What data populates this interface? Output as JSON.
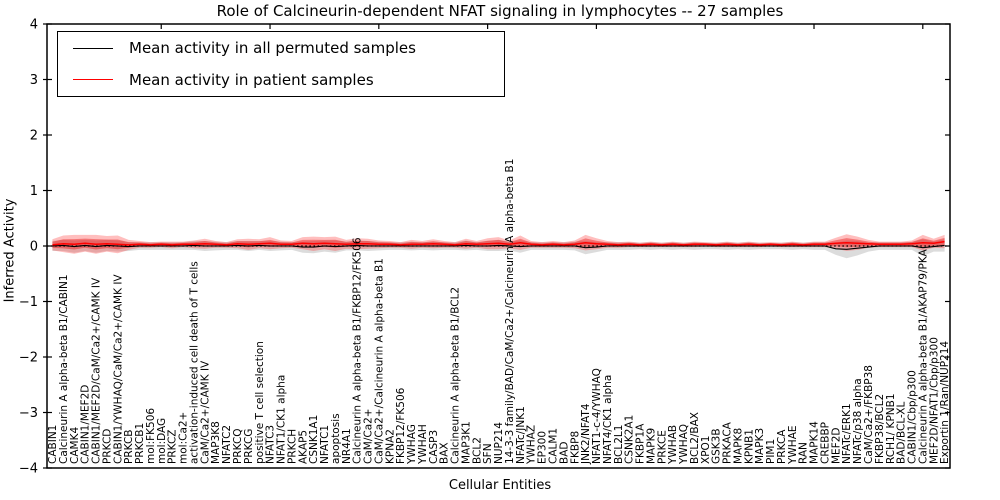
{
  "figure": {
    "title": "Role of Calcineurin-dependent NFAT signaling in lymphocytes -- 27 samples"
  },
  "chart_data": {
    "type": "line",
    "title": "Role of Calcineurin-dependent NFAT signaling in lymphocytes -- 27 samples",
    "xlabel": "Cellular Entities",
    "ylabel": "Inferred Activity",
    "ylim": [
      -4,
      4
    ],
    "yticks": [
      -4,
      -3,
      -2,
      -1,
      0,
      1,
      2,
      3,
      4
    ],
    "ytick_labels": [
      "−4",
      "−3",
      "−2",
      "−1",
      "0",
      "1",
      "2",
      "3",
      "4"
    ],
    "grid": false,
    "zero_line": {
      "show": true,
      "style": "dotted",
      "color": "#000000"
    },
    "legend_position": "upper left",
    "legend": [
      {
        "label": "Mean activity in all permuted samples",
        "color": "#000000"
      },
      {
        "label": "Mean activity in patient samples",
        "color": "#ff0000"
      }
    ],
    "colors": {
      "patient_line": "#ff0000",
      "patient_band": "rgba(255,40,40,0.30)",
      "patient_band_inner": "rgba(230,0,0,0.38)",
      "permuted_line": "#000000",
      "permuted_band": "rgba(130,130,130,0.28)"
    },
    "categories": [
      "CABIN1",
      "Calcineurin A alpha-beta B1/CABIN1",
      "CAMK4",
      "CABIN1/MEF2D",
      "CABIN1/MEF2D/CaM/Ca2+/CAMK IV",
      "PRKCD",
      "CABIN1/YWHAQ/CaM/Ca2+/CAMK IV",
      "PRKCB",
      "PRKCB1",
      "mol:FK506",
      "mol:DAG",
      "PRKCZ",
      "mol:Ca2+",
      "activation-induced cell death of T cells",
      "CaM/Ca2+/CAMK IV",
      "MAP3K8",
      "NFATC2",
      "PRKCQ",
      "PRKCG",
      "positive T cell selection",
      "NFATC3",
      "NFAT1/CK1 alpha",
      "PRKCH",
      "AKAP5",
      "CSNK1A1",
      "NFATC1",
      "apoptosis",
      "NR4A1",
      "Calcineurin A alpha-beta B1/FKBP12/FK506",
      "CaM/Ca2+",
      "CaM/Ca2+/Calcineurin A alpha-beta B1",
      "KPNA2",
      "FKBP12/FK506",
      "YWHAG",
      "YWHAH",
      "CASP3",
      "BAX",
      "Calcineurin A alpha-beta B1/BCL2",
      "MAP3K1",
      "BCL2",
      "SFN",
      "NUP214",
      "14-3-3 family/BAD/CaM/Ca2+/Calcineurin A alpha-beta B1",
      "NFATc/JNK1",
      "YWHAZ",
      "EP300",
      "CALM1",
      "BAD",
      "FKBP8",
      "JNK2/NFAT4",
      "NFAT1-c-4/YWHAQ",
      "NFAT4/CK1 alpha",
      "BCL2L1",
      "CSNK2A1",
      "FKBP1A",
      "MAPK9",
      "PRKCE",
      "YWHAB",
      "YWHAQ",
      "BCL2/BAX",
      "XPO1",
      "GSK3B",
      "PRKACA",
      "MAPK8",
      "KPNB1",
      "MAPK3",
      "PIM1",
      "PRKCA",
      "YWHAE",
      "RAN",
      "MAPK14",
      "CREBBP",
      "MEF2D",
      "NFATc/ERK1",
      "NFATc/p38 alpha",
      "CaM/Ca2+/FKBP38",
      "FKBP38/BCL2",
      "RCH1/ KPNB1",
      "BAD/BCL-XL",
      "CABIN1/Cbp/p300",
      "Calcineurin A alpha-beta B1/AKAP79/PKA",
      "MEF2D/NFAT1/Cbp/p300",
      "Exportin 1/Ran/NUP214"
    ],
    "series": [
      {
        "name": "Mean activity in all permuted samples",
        "color": "#000000",
        "values": [
          0,
          0.01,
          -0.01,
          0.01,
          -0.01,
          0.01,
          0,
          -0.01,
          0,
          0,
          0,
          0,
          0,
          0.01,
          0,
          0,
          0,
          0.01,
          0,
          0.01,
          0,
          0,
          0,
          -0.02,
          -0.02,
          0,
          -0.01,
          0,
          0.01,
          0,
          0,
          0,
          0,
          0,
          0,
          0,
          0,
          0,
          0.01,
          0,
          0,
          0.01,
          0,
          -0.01,
          0,
          0,
          0,
          0,
          0,
          -0.03,
          -0.02,
          0,
          0,
          0,
          0,
          0,
          0,
          0,
          0,
          0,
          0,
          0,
          0,
          0,
          0,
          0,
          0,
          0,
          0,
          0,
          0,
          0,
          -0.05,
          -0.06,
          -0.04,
          -0.02,
          0,
          0,
          0,
          0,
          -0.03,
          -0.01,
          0.01
        ],
        "band_half_width": [
          0.09,
          0.1,
          0.11,
          0.1,
          0.11,
          0.1,
          0.1,
          0.08,
          0.07,
          0.07,
          0.07,
          0.07,
          0.07,
          0.08,
          0.09,
          0.08,
          0.07,
          0.08,
          0.09,
          0.08,
          0.09,
          0.08,
          0.07,
          0.1,
          0.11,
          0.1,
          0.11,
          0.08,
          0.09,
          0.09,
          0.08,
          0.07,
          0.07,
          0.08,
          0.07,
          0.08,
          0.07,
          0.07,
          0.09,
          0.07,
          0.09,
          0.1,
          0.08,
          0.11,
          0.07,
          0.07,
          0.07,
          0.07,
          0.08,
          0.12,
          0.09,
          0.07,
          0.07,
          0.07,
          0.06,
          0.07,
          0.06,
          0.07,
          0.06,
          0.07,
          0.06,
          0.06,
          0.07,
          0.06,
          0.07,
          0.06,
          0.06,
          0.06,
          0.07,
          0.06,
          0.07,
          0.07,
          0.11,
          0.16,
          0.13,
          0.08,
          0.07,
          0.07,
          0.07,
          0.07,
          0.15,
          0.09,
          0.11
        ]
      },
      {
        "name": "Mean activity in patient samples",
        "color": "#ff0000",
        "values": [
          0.02,
          0.04,
          0.03,
          0.05,
          0.03,
          0.04,
          0.03,
          0.02,
          0.03,
          0.02,
          0.03,
          0.02,
          0.03,
          0.03,
          0.04,
          0.03,
          0.02,
          0.04,
          0.03,
          0.04,
          0.05,
          0.03,
          0.03,
          0.05,
          0.04,
          0.05,
          0.04,
          0.03,
          0.04,
          0.04,
          0.03,
          0.03,
          0.02,
          0.03,
          0.03,
          0.04,
          0.03,
          0.02,
          0.04,
          0.03,
          0.04,
          0.05,
          0.03,
          0.06,
          0.03,
          0.02,
          0.03,
          0.02,
          0.03,
          0.06,
          0.04,
          0.03,
          0.02,
          0.03,
          0.02,
          0.03,
          0.02,
          0.03,
          0.02,
          0.03,
          0.03,
          0.02,
          0.03,
          0.02,
          0.03,
          0.02,
          0.03,
          0.02,
          0.03,
          0.02,
          0.03,
          0.03,
          0.05,
          0.06,
          0.05,
          0.04,
          0.03,
          0.03,
          0.03,
          0.04,
          0.06,
          0.05,
          0.08
        ],
        "band_half_width": [
          0.1,
          0.15,
          0.17,
          0.15,
          0.17,
          0.14,
          0.16,
          0.09,
          0.06,
          0.05,
          0.05,
          0.06,
          0.05,
          0.07,
          0.09,
          0.06,
          0.05,
          0.08,
          0.1,
          0.08,
          0.11,
          0.07,
          0.06,
          0.11,
          0.13,
          0.11,
          0.13,
          0.08,
          0.1,
          0.09,
          0.07,
          0.06,
          0.05,
          0.08,
          0.06,
          0.08,
          0.06,
          0.05,
          0.09,
          0.06,
          0.1,
          0.11,
          0.07,
          0.13,
          0.06,
          0.05,
          0.06,
          0.05,
          0.07,
          0.14,
          0.1,
          0.06,
          0.05,
          0.05,
          0.04,
          0.05,
          0.04,
          0.05,
          0.04,
          0.05,
          0.04,
          0.04,
          0.05,
          0.04,
          0.05,
          0.04,
          0.04,
          0.04,
          0.05,
          0.04,
          0.05,
          0.05,
          0.1,
          0.15,
          0.12,
          0.07,
          0.05,
          0.05,
          0.05,
          0.06,
          0.14,
          0.08,
          0.12
        ]
      }
    ]
  }
}
